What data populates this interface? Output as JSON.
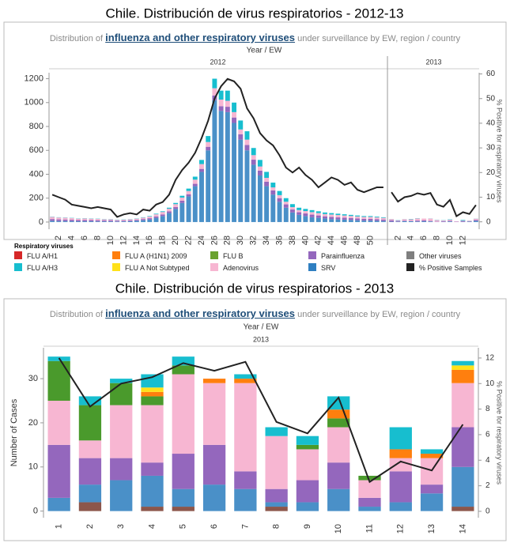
{
  "legend": {
    "title": "Respiratory viruses",
    "entries": [
      {
        "name": "FLU A/H1",
        "color": "#d62728"
      },
      {
        "name": "FLU A/H3",
        "color": "#17becf"
      },
      {
        "name": "FLU A (H1N1) 2009",
        "color": "#ff7f0e"
      },
      {
        "name": "FLU A Not Subtyped",
        "color": "#ffe11a"
      },
      {
        "name": "FLU B",
        "color": "#6aa22f"
      },
      {
        "name": "Adenovirus",
        "color": "#f7b6d2"
      },
      {
        "name": "Parainfluenza",
        "color": "#9467bd"
      },
      {
        "name": "SRV",
        "color": "#2f7fc1"
      },
      {
        "name": "Other viruses",
        "color": "#7f7f7f"
      },
      {
        "name": "% Positive Samples",
        "color": "#222222"
      }
    ]
  },
  "chart_data": [
    {
      "type": "bar",
      "stacked": true,
      "title": "Chile. Distribución de virus respiratorios - 2012-13",
      "subtitle": [
        "Distribution of ",
        "influenza and other respiratory viruses",
        " under surveillance by EW, region / country"
      ],
      "x_title": "Year / EW",
      "y2_title": "% Positive for respiratory viruses",
      "ylim": [
        -60,
        1250
      ],
      "yticks": [
        0,
        200,
        400,
        600,
        800,
        1000,
        1200
      ],
      "y2lim": [
        -3,
        60.5
      ],
      "y2ticks": [
        0,
        10,
        20,
        30,
        40,
        50,
        60
      ],
      "panels": [
        {
          "label": "2012",
          "categories": [
            null,
            "2",
            null,
            "4",
            null,
            "6",
            null,
            "8",
            null,
            "10",
            null,
            "12",
            null,
            "14",
            null,
            "16",
            null,
            "18",
            null,
            "20",
            null,
            "22",
            null,
            "24",
            null,
            "26",
            null,
            "28",
            null,
            "30",
            null,
            "32",
            null,
            "34",
            null,
            "36",
            null,
            "38",
            null,
            "40",
            null,
            "42",
            null,
            "44",
            null,
            "46",
            null,
            "48",
            null,
            "50",
            null,
            null
          ],
          "series": [
            {
              "color": "#4a90c8",
              "values": [
                10,
                8,
                8,
                7,
                6,
                6,
                6,
                5,
                5,
                5,
                4,
                5,
                6,
                10,
                15,
                22,
                35,
                50,
                75,
                110,
                160,
                215,
                300,
                420,
                600,
                1020,
                930,
                920,
                830,
                690,
                600,
                480,
                390,
                300,
                230,
                170,
                120,
                80,
                60,
                50,
                40,
                35,
                30,
                25,
                22,
                20,
                18,
                15,
                12,
                12,
                10,
                8
              ]
            },
            {
              "color": "#9467bd",
              "values": [
                15,
                14,
                13,
                12,
                10,
                11,
                10,
                10,
                9,
                9,
                7,
                7,
                8,
                8,
                10,
                10,
                12,
                14,
                15,
                15,
                18,
                18,
                20,
                25,
                30,
                40,
                40,
                45,
                45,
                45,
                45,
                42,
                40,
                38,
                35,
                30,
                28,
                25,
                22,
                22,
                22,
                20,
                18,
                18,
                17,
                16,
                15,
                15,
                15,
                15,
                14,
                13
              ]
            },
            {
              "color": "#f7b6d2",
              "values": [
                18,
                16,
                15,
                14,
                12,
                13,
                12,
                11,
                9,
                9,
                7,
                8,
                9,
                10,
                12,
                14,
                18,
                20,
                22,
                25,
                27,
                27,
                35,
                40,
                40,
                60,
                55,
                50,
                45,
                40,
                45,
                38,
                35,
                32,
                25,
                25,
                22,
                20,
                18,
                20,
                21,
                20,
                19,
                20,
                20,
                19,
                18,
                17,
                16,
                16,
                15,
                14
              ]
            },
            {
              "color": "#17becf",
              "values": [
                2,
                2,
                2,
                2,
                2,
                2,
                2,
                2,
                2,
                2,
                2,
                2,
                2,
                2,
                3,
                4,
                5,
                6,
                8,
                10,
                15,
                20,
                25,
                35,
                50,
                80,
                75,
                85,
                80,
                75,
                70,
                60,
                55,
                50,
                40,
                35,
                30,
                25,
                20,
                18,
                17,
                15,
                13,
                12,
                11,
                10,
                9,
                8,
                7,
                7,
                6,
                5
              ]
            },
            {
              "type": "line",
              "axis": "y2",
              "color": "#222222",
              "values": [
                11,
                10,
                9,
                7,
                6.5,
                6,
                5.5,
                6,
                5.5,
                5,
                2,
                3,
                3.5,
                3,
                5,
                4.5,
                7,
                8,
                11,
                17,
                21,
                24,
                28,
                34,
                41,
                50,
                55,
                58,
                57,
                54,
                46,
                42,
                36,
                33,
                31,
                27,
                22,
                20,
                22,
                19,
                17,
                14,
                16,
                18,
                17,
                15,
                16,
                13,
                12,
                13,
                14,
                14
              ]
            }
          ]
        },
        {
          "label": "2013",
          "categories": [
            null,
            "2",
            null,
            "4",
            null,
            "6",
            null,
            "8",
            null,
            "10",
            null,
            "12",
            null,
            null
          ],
          "series": [
            {
              "color": "#4a90c8",
              "values": [
                3,
                4,
                7,
                7,
                4,
                6,
                5,
                1,
                2,
                5,
                1,
                2,
                4,
                9
              ]
            },
            {
              "color": "#9467bd",
              "values": [
                12,
                6,
                5,
                3,
                8,
                9,
                4,
                3,
                5,
                6,
                2,
                7,
                2,
                9
              ]
            },
            {
              "color": "#f7b6d2",
              "values": [
                10,
                4,
                12,
                13,
                18,
                14,
                20,
                12,
                7,
                8,
                4,
                3,
                6,
                10
              ]
            },
            {
              "color": "#17becf",
              "values": [
                1,
                2,
                1,
                3,
                2,
                0,
                1,
                2,
                2,
                3,
                0,
                5,
                1,
                1
              ]
            },
            {
              "type": "line",
              "axis": "y2",
              "color": "#222222",
              "values": [
                12,
                8.2,
                10,
                10.5,
                11.6,
                11,
                11.7,
                7,
                6.1,
                8.9,
                2.3,
                3.9,
                3.2,
                6.8
              ]
            }
          ]
        }
      ]
    },
    {
      "type": "bar",
      "stacked": true,
      "title": "Chile. Distribución de virus respiratorios - 2013",
      "subtitle": [
        "Distribution of ",
        "influenza and other respiratory viruses",
        " under surveillance by EW, region / country"
      ],
      "x_title": "Year / EW",
      "y_title": "Number of Cases",
      "y2_title": "% Positive for respiratory viruses",
      "ylim": [
        -1.5,
        37
      ],
      "yticks": [
        0,
        10,
        20,
        30
      ],
      "y2lim": [
        -0.5,
        12.8
      ],
      "y2ticks": [
        0,
        2,
        4,
        6,
        8,
        10,
        12
      ],
      "panels": [
        {
          "label": "2013",
          "categories": [
            "1",
            "2",
            "3",
            "4",
            "5",
            "6",
            "7",
            "8",
            "9",
            "10",
            "11",
            "12",
            "13",
            "14"
          ],
          "series": [
            {
              "color": "#8c564b",
              "values": [
                0,
                2,
                0,
                1,
                1,
                0,
                0,
                1,
                0,
                0,
                0,
                0,
                0,
                1
              ]
            },
            {
              "color": "#4a90c8",
              "values": [
                3,
                4,
                7,
                7,
                4,
                6,
                5,
                1,
                2,
                5,
                1,
                2,
                4,
                9
              ]
            },
            {
              "color": "#9467bd",
              "values": [
                12,
                6,
                5,
                3,
                8,
                9,
                4,
                3,
                5,
                6,
                2,
                7,
                2,
                9
              ]
            },
            {
              "color": "#f7b6d2",
              "values": [
                10,
                4,
                12,
                13,
                18,
                14,
                20,
                12,
                7,
                8,
                4,
                3,
                6,
                10
              ]
            },
            {
              "color": "#4a9a2c",
              "values": [
                9,
                8,
                5,
                2,
                2,
                0,
                0,
                0,
                1,
                2,
                1,
                0,
                0,
                0
              ]
            },
            {
              "color": "#ff7f0e",
              "values": [
                0,
                0,
                0,
                1,
                0,
                1,
                1,
                0,
                0,
                2,
                0,
                2,
                1,
                3
              ]
            },
            {
              "color": "#ffe11a",
              "values": [
                0,
                0,
                0,
                1,
                0,
                0,
                0,
                0,
                0,
                0,
                0,
                0,
                0,
                1
              ]
            },
            {
              "color": "#17becf",
              "values": [
                1,
                2,
                1,
                3,
                2,
                0,
                1,
                2,
                2,
                3,
                0,
                5,
                1,
                1
              ]
            },
            {
              "type": "line",
              "axis": "y2",
              "color": "#222222",
              "values": [
                12,
                8.2,
                10,
                10.5,
                11.6,
                11,
                11.7,
                7,
                6.1,
                8.9,
                2.3,
                3.9,
                3.2,
                6.8
              ]
            }
          ]
        }
      ]
    }
  ]
}
